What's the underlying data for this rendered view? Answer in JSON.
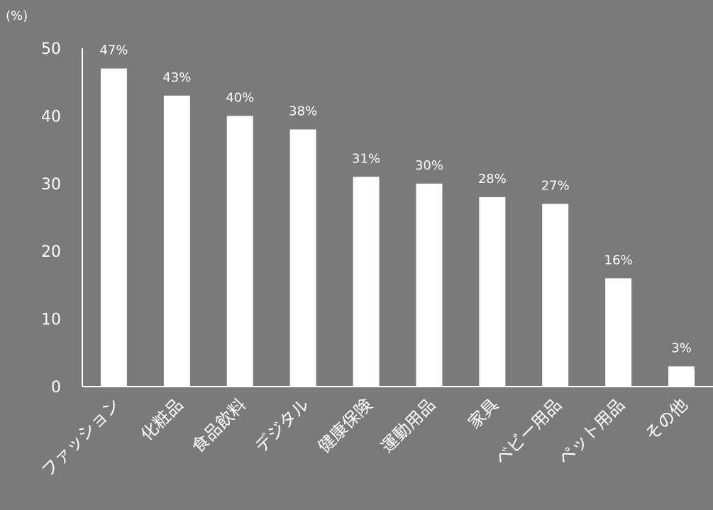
{
  "chart_data": {
    "type": "bar",
    "unit_label": "(%)",
    "categories": [
      "ファッション",
      "化粧品",
      "食品飲料",
      "デジタル",
      "健康保険",
      "運動用品",
      "家具",
      "ベビー用品",
      "ペット用品",
      "その他"
    ],
    "values": [
      47,
      43,
      40,
      38,
      31,
      30,
      28,
      27,
      16,
      3
    ],
    "data_labels": [
      "47%",
      "43%",
      "40%",
      "38%",
      "31%",
      "30%",
      "28%",
      "27%",
      "16%",
      "3%"
    ],
    "ylim": [
      0,
      50
    ],
    "yticks": [
      0,
      10,
      20,
      30,
      40,
      50
    ],
    "ytick_labels": [
      "0",
      "10",
      "20",
      "30",
      "40",
      "50"
    ],
    "grid": false,
    "colors": {
      "background": "#7a7a7a",
      "bar": "#ffffff",
      "axis": "#ffffff",
      "text": "#ffffff"
    }
  }
}
